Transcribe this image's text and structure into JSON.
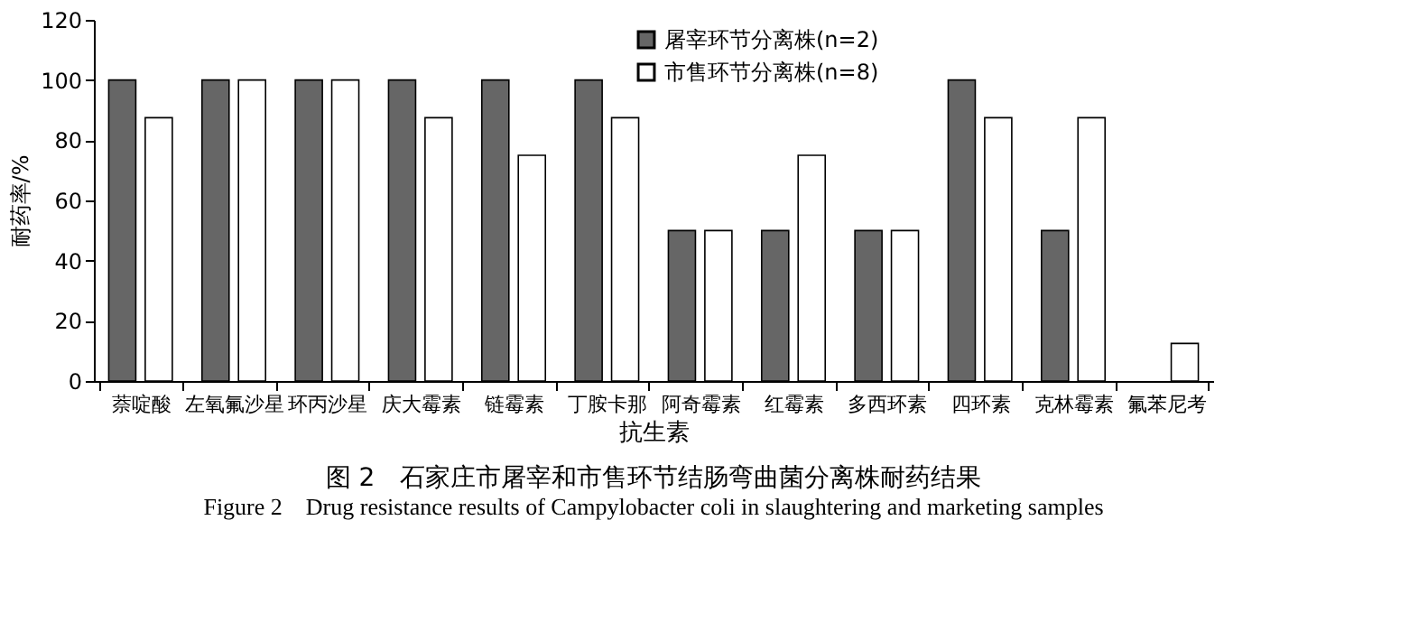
{
  "chart_data": {
    "type": "bar",
    "title": "图 2　石家庄市屠宰和市售环节结肠弯曲菌分离株耐药结果",
    "subtitle": "Figure 2　Drug resistance results of Campylobacter coli in slaughtering and marketing samples",
    "xlabel": "抗生素",
    "ylabel": "耐药率/%",
    "categories": [
      "萘啶酸",
      "左氧氟沙星",
      "环丙沙星",
      "庆大霉素",
      "链霉素",
      "丁胺卡那",
      "阿奇霉素",
      "红霉素",
      "多西环素",
      "四环素",
      "克林霉素",
      "氟苯尼考"
    ],
    "series": [
      {
        "name": "屠宰环节分离株(n=2)",
        "color": "#666666",
        "values": [
          100,
          100,
          100,
          100,
          100,
          100,
          50,
          50,
          50,
          100,
          50,
          0
        ]
      },
      {
        "name": "市售环节分离株(n=8)",
        "color": "#ffffff",
        "values": [
          87.5,
          100,
          100,
          87.5,
          75,
          87.5,
          50,
          75,
          50,
          87.5,
          87.5,
          12.5
        ]
      }
    ],
    "ylim": [
      0,
      120
    ],
    "yticks": [
      0,
      20,
      40,
      60,
      80,
      100,
      120
    ],
    "grid": false,
    "legend": "top right"
  }
}
